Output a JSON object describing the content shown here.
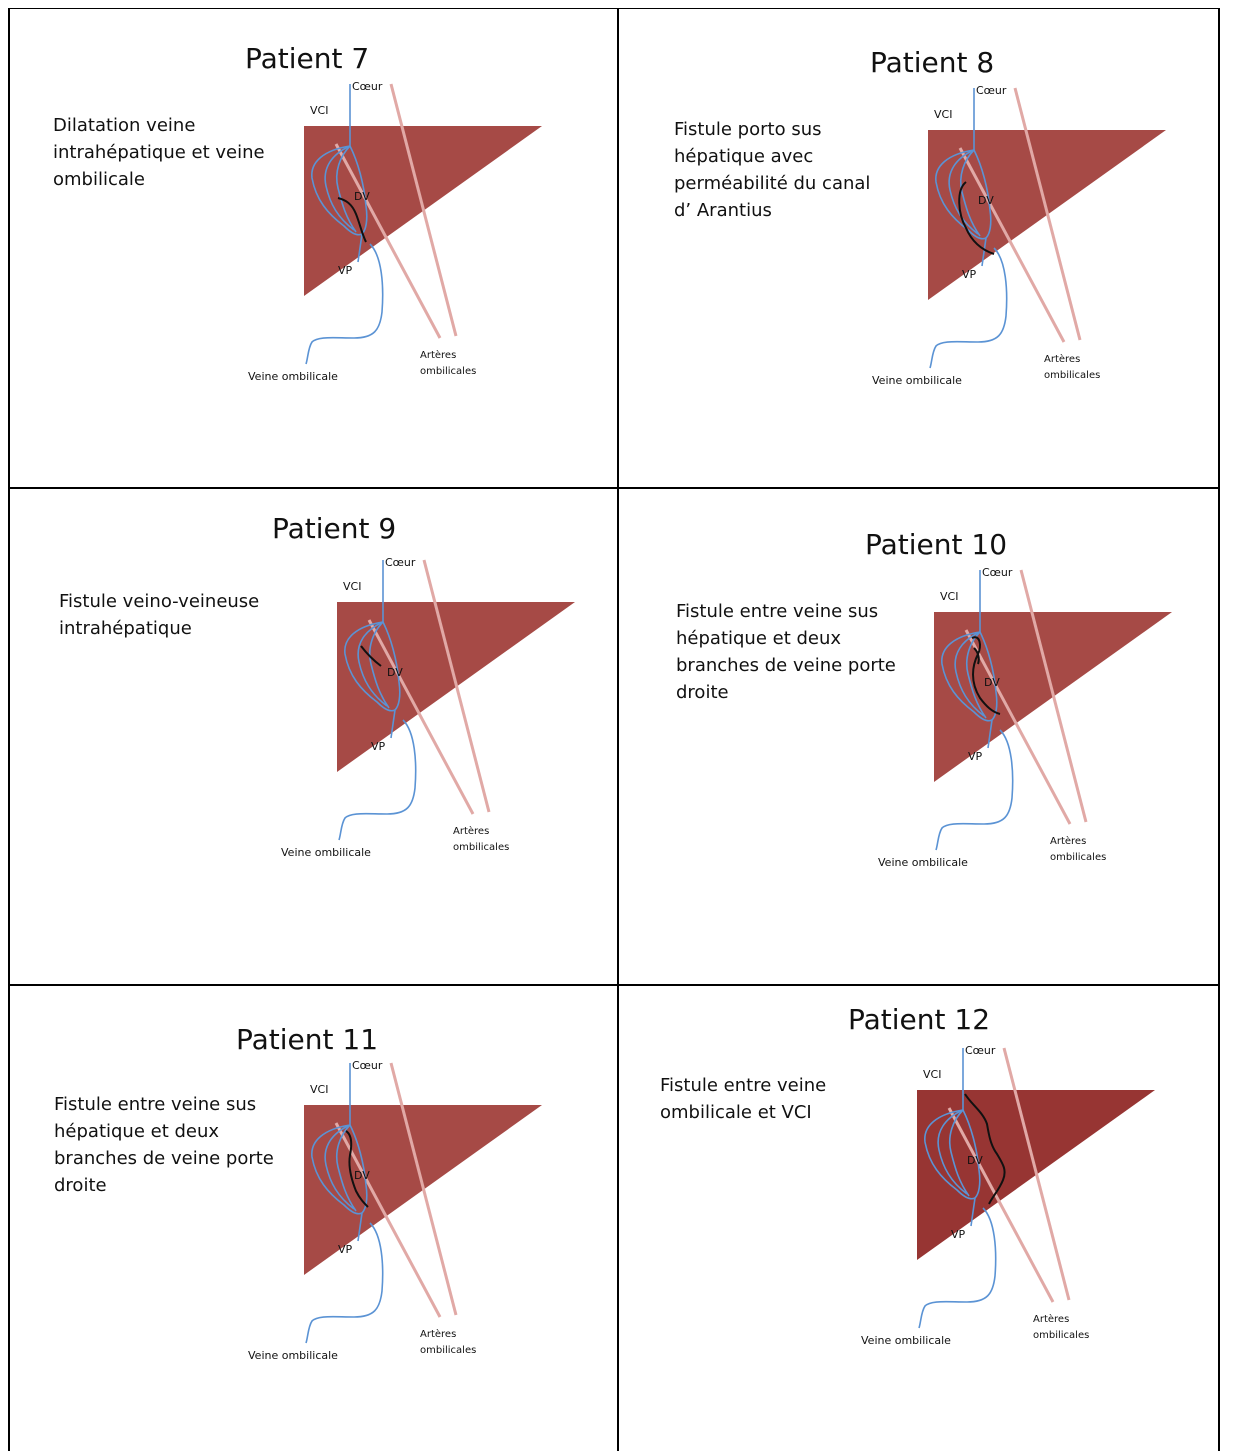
{
  "panels": [
    {
      "title": "Patient 7",
      "description": [
        "Dilatation veine",
        "intrahépatique et veine",
        "ombilicale"
      ]
    },
    {
      "title": "Patient 8",
      "description": [
        "Fistule porto sus",
        "hépatique avec",
        "perméabilité du canal",
        "d’ Arantius"
      ]
    },
    {
      "title": "Patient 9",
      "description": [
        "Fistule veino-veineuse",
        "intrahépatique"
      ]
    },
    {
      "title": "Patient 10",
      "description": [
        "Fistule entre veine sus",
        "hépatique et deux",
        "branches de veine porte",
        "droite"
      ]
    },
    {
      "title": "Patient 11",
      "description": [
        "Fistule entre veine sus",
        "hépatique et deux",
        "branches de veine porte",
        "droite"
      ]
    },
    {
      "title": "Patient 12",
      "description": [
        "Fistule entre veine",
        "ombilicale et VCI"
      ]
    }
  ],
  "diagram_labels": {
    "heart": "Cœur",
    "ivc": "VCI",
    "ductus_venosus": "DV",
    "portal_vein": "VP",
    "umbilical_vein": "Veine ombilicale",
    "umbilical_arteries": [
      "Artères",
      "ombilicales"
    ]
  },
  "colors": {
    "liver": "#a64a46",
    "liver_dark": "#973533",
    "vein_blue": "#5b93d4",
    "artery_pink": "#e1a9a6",
    "fistula_black": "#111111",
    "frame": "#000000"
  }
}
